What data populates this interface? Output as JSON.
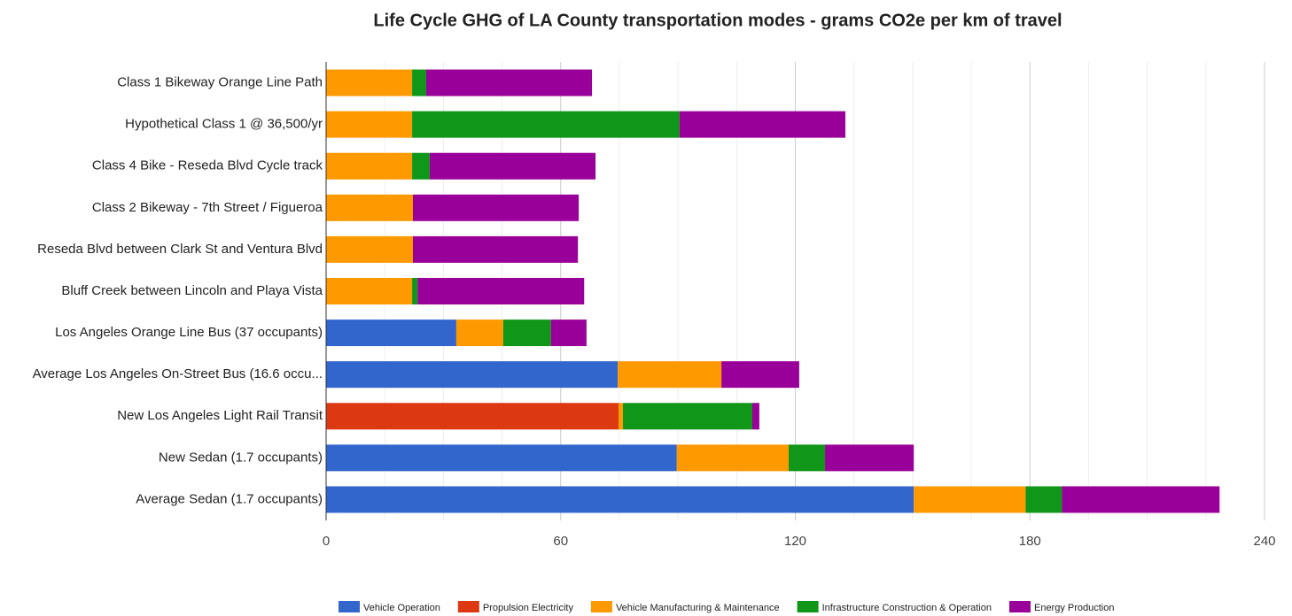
{
  "chart_data": {
    "type": "stacked-bar-horizontal",
    "title": "Life Cycle GHG of LA County transportation modes - grams CO2e per km of travel",
    "categories": [
      "Class 1 Bikeway Orange Line Path",
      "Hypothetical Class 1 @ 36,500/yr",
      "Class 4 Bike - Reseda Blvd Cycle track",
      "Class 2 Bikeway - 7th Street / Figueroa",
      "Reseda Blvd between Clark St and Ventura Blvd",
      "Bluff Creek between Lincoln and Playa Vista",
      "Los Angeles Orange Line Bus (37 occupants)",
      "Average Los Angeles On-Street Bus (16.6 occu...",
      "New Los Angeles Light Rail Transit",
      "New Sedan (1.7 occupants)",
      "Average Sedan (1.7 occupants)"
    ],
    "series": [
      {
        "name": "Vehicle Operation",
        "color": "#3366cc",
        "values": [
          0,
          0,
          0,
          0,
          0,
          0,
          33.3,
          74.6,
          0,
          89.7,
          150.3
        ]
      },
      {
        "name": "Propulsion Electricity",
        "color": "#dc3912",
        "values": [
          0,
          0,
          0,
          0,
          0,
          0,
          0,
          0,
          74.8,
          0,
          0
        ]
      },
      {
        "name": "Vehicle Manufacturing & Maintenance",
        "color": "#ff9900",
        "values": [
          22,
          22,
          22,
          22.2,
          22.2,
          22,
          12,
          26.5,
          1.1,
          28.6,
          28.6
        ]
      },
      {
        "name": "Infrastructure Construction & Operation",
        "color": "#109618",
        "values": [
          3.6,
          68.4,
          4.5,
          0,
          0,
          1.4,
          12.2,
          0,
          33.1,
          9.3,
          9.3
        ]
      },
      {
        "name": "Energy Production",
        "color": "#990099",
        "values": [
          42.4,
          42.4,
          42.4,
          42.4,
          42.2,
          42.6,
          9.1,
          19.9,
          1.8,
          22.7,
          40.3
        ]
      }
    ],
    "xlim": [
      0,
      240
    ],
    "xticks": [
      0,
      60,
      120,
      180,
      240
    ],
    "grid": true,
    "legend": "bottom"
  }
}
